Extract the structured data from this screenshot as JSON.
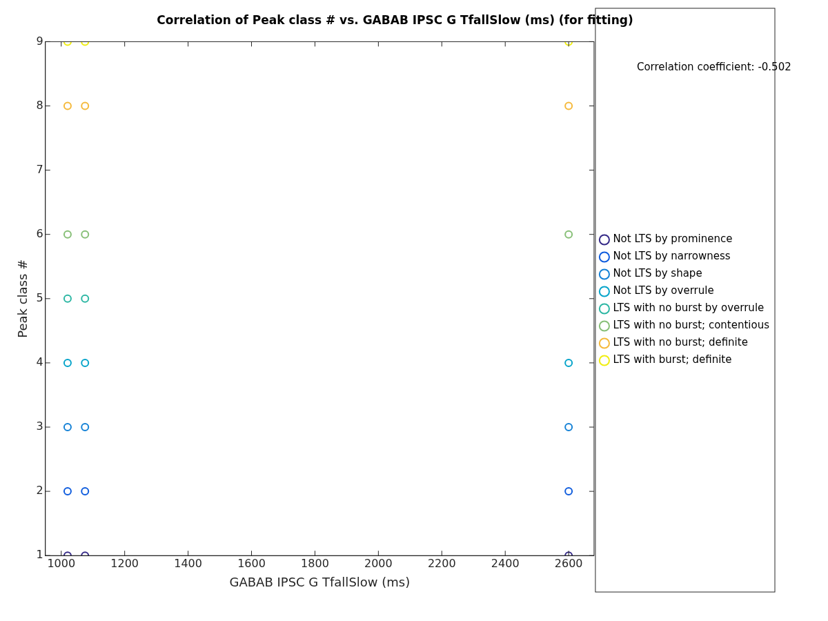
{
  "chart_data": {
    "type": "scatter",
    "title": "Correlation of Peak class # vs. GABAB IPSC G TfallSlow (ms) (for fitting)",
    "x_label": "GABAB IPSC G TfallSlow (ms)",
    "y_label": "Peak class #",
    "annotation": "Correlation coefficient: -0.502",
    "xlim": [
      950,
      2680
    ],
    "xticks": [
      1000,
      1200,
      1400,
      1600,
      1800,
      2000,
      2200,
      2400,
      2600
    ],
    "ylim": [
      1,
      9
    ],
    "yticks": [
      1,
      2,
      3,
      4,
      5,
      6,
      7,
      8,
      9
    ],
    "grid": false,
    "legend": "right",
    "marker": "circle",
    "series": [
      {
        "name": "Not LTS by prominence",
        "color": "#352a87",
        "x": [
          1020,
          1075,
          2600
        ],
        "values": [
          1,
          1,
          1
        ]
      },
      {
        "name": "Not LTS by narrowness",
        "color": "#0f5cdd",
        "x": [
          1020,
          1075,
          2600
        ],
        "values": [
          2,
          2,
          2
        ]
      },
      {
        "name": "Not LTS by shape",
        "color": "#1481d6",
        "x": [
          1020,
          1075,
          2600
        ],
        "values": [
          3,
          3,
          3
        ]
      },
      {
        "name": "Not LTS by overrule",
        "color": "#06a4ca",
        "x": [
          1020,
          1075,
          2600
        ],
        "values": [
          4,
          4,
          4
        ]
      },
      {
        "name": "LTS with no burst by overrule",
        "color": "#2eb7a4",
        "x": [
          1020,
          1075
        ],
        "values": [
          5,
          5
        ]
      },
      {
        "name": "LTS with no burst; contentious",
        "color": "#87bf77",
        "x": [
          1020,
          1075,
          2600
        ],
        "values": [
          6,
          6,
          6
        ]
      },
      {
        "name": "LTS with no burst; definite",
        "color": "#f5b93b",
        "x": [
          1020,
          1075,
          2600
        ],
        "values": [
          8,
          8,
          8
        ]
      },
      {
        "name": "LTS with burst; definite",
        "color": "#f0ee10",
        "x": [
          1020,
          1075,
          2600
        ],
        "values": [
          9,
          9,
          9
        ]
      }
    ]
  }
}
